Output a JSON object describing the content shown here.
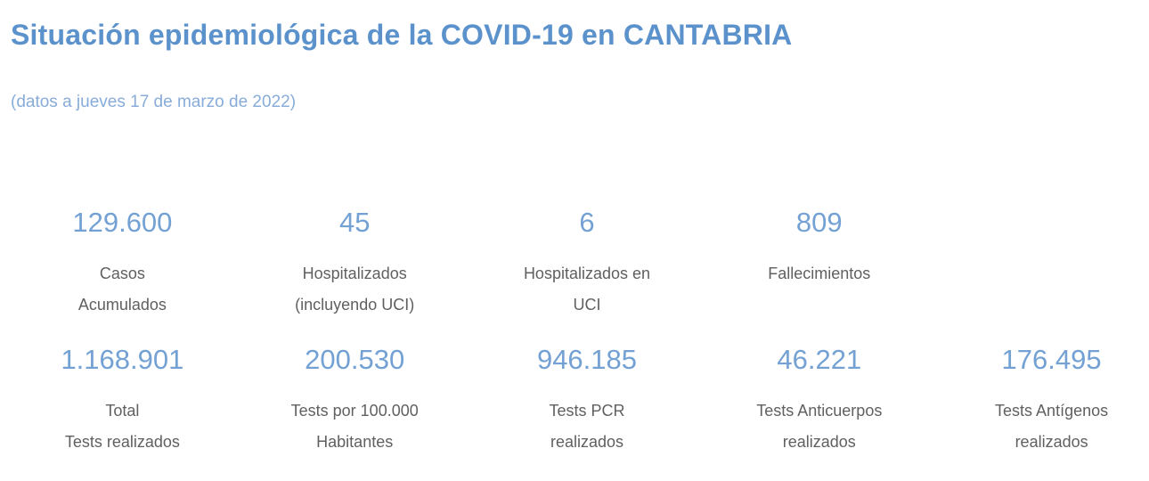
{
  "header": {
    "title": "Situación epidemiológica de la COVID-19 en CANTABRIA",
    "subtitle": "(datos a jueves 17 de marzo de 2022)"
  },
  "colors": {
    "title": "#5b92cc",
    "subtitle": "#88acda",
    "value": "#74a1d4",
    "label": "#606060",
    "background": "#ffffff"
  },
  "rows": [
    {
      "cells": [
        {
          "value": "129.600",
          "label": "Casos\nAcumulados"
        },
        {
          "value": "45",
          "label": "Hospitalizados\n(incluyendo UCI)"
        },
        {
          "value": "6",
          "label": "Hospitalizados en\nUCI"
        },
        {
          "value": "809",
          "label": "Fallecimientos"
        }
      ]
    },
    {
      "cells": [
        {
          "value": "1.168.901",
          "label": "Total\nTests realizados"
        },
        {
          "value": "200.530",
          "label": "Tests por 100.000\nHabitantes"
        },
        {
          "value": "946.185",
          "label": "Tests PCR\nrealizados"
        },
        {
          "value": "46.221",
          "label": "Tests Anticuerpos\nrealizados"
        },
        {
          "value": "176.495",
          "label": "Tests Antígenos\nrealizados"
        }
      ]
    }
  ]
}
